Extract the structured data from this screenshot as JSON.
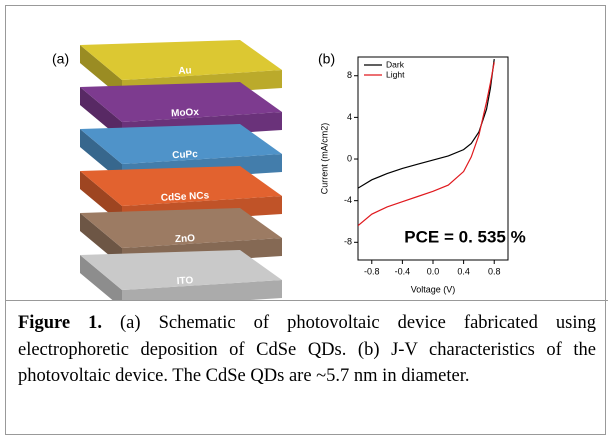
{
  "panel_a": {
    "label": "(a)",
    "layers": [
      {
        "name": "Au",
        "color": "#dcc832"
      },
      {
        "name": "MoOx",
        "color": "#7d3b8f"
      },
      {
        "name": "CuPc",
        "color": "#4f93c9"
      },
      {
        "name": "CdSe NCs",
        "color": "#e2622f"
      },
      {
        "name": "ZnO",
        "color": "#9c7b63"
      },
      {
        "name": "ITO",
        "color": "#c9c9c9"
      }
    ]
  },
  "chart_data": {
    "type": "line",
    "panel_label": "(b)",
    "x_label": "Voltage (V)",
    "y_label": "Current (mA/cm2)",
    "annotation": "PCE = 0. 535 %",
    "x": [
      -0.98,
      -0.8,
      -0.6,
      -0.4,
      -0.2,
      0,
      0.2,
      0.4,
      0.5,
      0.6,
      0.7,
      0.75,
      0.8
    ],
    "series": [
      {
        "name": "Dark",
        "color": "#000000",
        "values": [
          -2.8,
          -2.0,
          -1.4,
          -0.9,
          -0.5,
          -0.1,
          0.3,
          0.9,
          1.5,
          2.6,
          4.8,
          6.8,
          9.6
        ]
      },
      {
        "name": "Light",
        "color": "#e0191e",
        "values": [
          -6.4,
          -5.3,
          -4.6,
          -4.1,
          -3.6,
          -3.1,
          -2.5,
          -1.2,
          0.2,
          2.3,
          5.5,
          7.3,
          9.3
        ]
      }
    ],
    "xlim": [
      -0.98,
      0.98
    ],
    "ylim": [
      -9.7,
      9.8
    ],
    "xticks": [
      -0.8,
      -0.4,
      {
        "value": 0,
        "label": "0.0"
      },
      0.4,
      0.8
    ],
    "yticks": [
      -8,
      -4,
      0,
      4,
      8
    ],
    "legend": "upper left"
  },
  "caption": {
    "label": "Figure 1.",
    "text": " (a) Schematic of photovoltaic device fabricated using electrophoretic deposition of CdSe QDs. (b) J-V characteristics of the photovoltaic device. The CdSe QDs are ~5.7 nm in diameter."
  }
}
